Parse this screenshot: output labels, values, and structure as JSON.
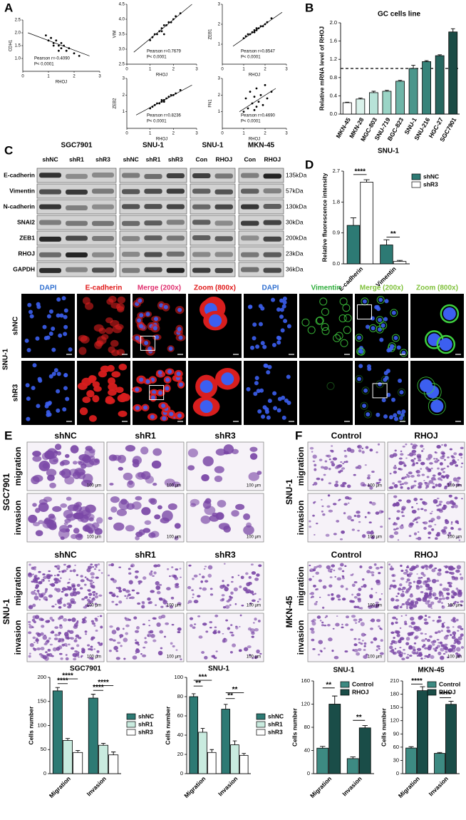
{
  "panel_labels": [
    "A",
    "B",
    "C",
    "D",
    "E",
    "F"
  ],
  "chart_data": [
    {
      "type": "scatter",
      "x_label": "RHOJ",
      "y_label": "CDH1",
      "x": [
        0.9,
        1.0,
        1.1,
        1.2,
        1.2,
        1.3,
        1.4,
        1.5,
        1.5,
        1.6,
        1.7,
        1.8,
        2.0,
        2.2,
        1.4
      ],
      "y": [
        1.9,
        1.7,
        1.8,
        1.6,
        1.5,
        1.7,
        1.5,
        1.6,
        1.4,
        1.5,
        1.3,
        1.4,
        1.2,
        1.1,
        1.3
      ],
      "fit_line": {
        "x": [
          0.2,
          2.6
        ],
        "y": [
          2.0,
          1.1
        ]
      },
      "xlim": [
        0,
        3
      ],
      "xticks": [
        0,
        1,
        2,
        3
      ],
      "ylim": [
        0.5,
        2.5
      ],
      "yticks": [
        {
          "value": 1,
          "label": "1.0"
        },
        1.5,
        {
          "value": 2,
          "label": "2.0"
        },
        2.5
      ],
      "annotations": [
        "Pearson r=-0.4090",
        "P< 0.0001"
      ],
      "color": "#000000"
    },
    {
      "type": "scatter",
      "x_label": "RHOJ",
      "y_label": "VIM",
      "x": [
        1.0,
        1.1,
        1.2,
        1.3,
        1.4,
        1.5,
        1.5,
        1.6,
        1.7,
        1.8,
        1.9,
        2.0,
        2.1,
        2.3,
        1.6
      ],
      "y": [
        3.3,
        3.4,
        3.5,
        3.5,
        3.6,
        3.7,
        3.6,
        3.8,
        3.8,
        3.9,
        3.9,
        4.0,
        4.1,
        4.2,
        3.5
      ],
      "fit_line": {
        "x": [
          0.3,
          2.8
        ],
        "y": [
          2.9,
          4.5
        ]
      },
      "xlim": [
        0,
        3
      ],
      "xticks": [
        0,
        1,
        2,
        3
      ],
      "ylim": [
        2.5,
        4.5
      ],
      "yticks": [
        2.5,
        {
          "value": 3,
          "label": "3.0"
        },
        3.5,
        {
          "value": 4,
          "label": "4.0"
        },
        4.5
      ],
      "annotations": [
        "Pearson r=0.7679",
        "P< 0.0001"
      ],
      "color": "#000000"
    },
    {
      "type": "scatter",
      "x_label": "RHOJ",
      "y_label": "ZEB1",
      "x": [
        1.0,
        1.1,
        1.2,
        1.3,
        1.4,
        1.5,
        1.5,
        1.6,
        1.7,
        1.8,
        1.9,
        2.0,
        2.1,
        2.3,
        1.6
      ],
      "y": [
        1.3,
        1.4,
        1.5,
        1.5,
        1.6,
        1.7,
        1.6,
        1.8,
        1.8,
        1.9,
        1.9,
        2.0,
        2.1,
        2.3,
        1.7
      ],
      "fit_line": {
        "x": [
          0.5,
          2.8
        ],
        "y": [
          0.9,
          2.6
        ]
      },
      "xlim": [
        0,
        3
      ],
      "xticks": [
        0,
        1,
        2,
        3
      ],
      "ylim": [
        0,
        3
      ],
      "yticks": [
        1,
        2,
        3
      ],
      "annotations": [
        "Pearson r=0.8547",
        "P< 0.0001"
      ],
      "color": "#000000"
    },
    {
      "type": "scatter",
      "x_label": "RHOJ",
      "y_label": "ZEB2",
      "x": [
        1.0,
        1.1,
        1.2,
        1.3,
        1.4,
        1.5,
        1.5,
        1.6,
        1.7,
        1.8,
        1.9,
        2.0,
        2.1,
        2.3,
        1.6
      ],
      "y": [
        1.2,
        1.3,
        1.4,
        1.5,
        1.5,
        1.6,
        1.7,
        1.7,
        1.8,
        1.9,
        2.0,
        2.0,
        2.1,
        2.3,
        1.6
      ],
      "fit_line": {
        "x": [
          0.4,
          2.8
        ],
        "y": [
          0.8,
          2.6
        ]
      },
      "xlim": [
        0,
        3
      ],
      "xticks": [
        0,
        1,
        2,
        3
      ],
      "ylim": [
        0,
        3
      ],
      "yticks": [
        1,
        2,
        3
      ],
      "annotations": [
        "Pearson r=0.8236",
        "P< 0.0001"
      ],
      "color": "#000000"
    },
    {
      "type": "scatter",
      "x_label": "RHOJ",
      "y_label": "FN1",
      "x": [
        1.0,
        1.1,
        1.2,
        1.3,
        1.4,
        1.5,
        1.5,
        1.6,
        1.7,
        1.8,
        1.9,
        2.0,
        2.1,
        2.3,
        1.6
      ],
      "y": [
        1.0,
        1.8,
        1.2,
        2.2,
        1.5,
        1.9,
        1.1,
        2.4,
        1.6,
        2.0,
        1.4,
        2.6,
        1.8,
        2.2,
        1.3
      ],
      "fit_line": {
        "x": [
          0.8,
          2.5
        ],
        "y": [
          1.0,
          2.4
        ]
      },
      "xlim": [
        0,
        3
      ],
      "xticks": [
        0,
        1,
        2,
        3
      ],
      "ylim": [
        0,
        3
      ],
      "yticks": [
        1,
        2,
        3
      ],
      "annotations": [
        "Pearson r=0.4690",
        "P< 0.0001"
      ],
      "color": "#000000"
    },
    {
      "type": "bar",
      "title": "GC cells line",
      "y_label": "Relative mRNA level of RHOJ",
      "categories": [
        "MKN-45",
        "MKN-28",
        "MGC-803",
        "SNU-719",
        "BGC-823",
        "SNU-1",
        "SNU-216",
        "HGC-27",
        "SGC7901"
      ],
      "values": [
        0.25,
        0.33,
        0.47,
        0.5,
        0.72,
        1.0,
        1.15,
        1.28,
        1.8
      ],
      "errors": [
        0.01,
        0.02,
        0.03,
        0.02,
        0.02,
        0.07,
        0.02,
        0.02,
        0.07
      ],
      "colors": [
        "#ffffff",
        "#d9f1ea",
        "#b8e3d8",
        "#9ad4c6",
        "#6fb5a8",
        "#4a968b",
        "#37837a",
        "#27665f",
        "#1b4b45"
      ],
      "ref_line": 1,
      "ylim": [
        0,
        2
      ],
      "yticks": [
        {
          "value": 0,
          "label": "0.0"
        },
        0.4,
        0.8,
        1.2,
        1.6,
        {
          "value": 2,
          "label": "2.0"
        }
      ]
    },
    {
      "type": "bar",
      "title": "SNU-1",
      "y_label": "Relative fluorescence intensity",
      "categories": [
        "E-cadherin",
        "Vimentin"
      ],
      "series": [
        {
          "name": "shNC",
          "color": "#2d7a74",
          "values": [
            1.12,
            0.55
          ],
          "errors": [
            0.22,
            0.15
          ]
        },
        {
          "name": "shR3",
          "color": "#ffffff",
          "values": [
            2.38,
            0.07
          ],
          "errors": [
            0.07,
            0.03
          ]
        }
      ],
      "ylim": [
        0,
        2.7
      ],
      "yticks": [
        {
          "value": 0,
          "label": "0.0"
        },
        0.9,
        1.8,
        2.7
      ],
      "annotations": [
        "****",
        "**"
      ]
    },
    {
      "type": "bar",
      "title": "SGC7901",
      "y_label": "Cells number",
      "categories": [
        "Migration",
        "Invasion"
      ],
      "series": [
        {
          "name": "shNC",
          "color": "#2d7a74",
          "values": [
            172,
            157
          ],
          "errors": [
            7,
            8
          ]
        },
        {
          "name": "shR1",
          "color": "#c9ebdf",
          "values": [
            69,
            59
          ],
          "errors": [
            4,
            4
          ]
        },
        {
          "name": "shR3",
          "color": "#ffffff",
          "values": [
            44,
            39
          ],
          "errors": [
            4,
            6
          ]
        }
      ],
      "ylim": [
        0,
        200
      ],
      "yticks": [
        0,
        50,
        100,
        150,
        200
      ],
      "annotations": [
        "****",
        "****",
        "****",
        "****"
      ]
    },
    {
      "type": "bar",
      "title": "SNU-1",
      "y_label": "Cells number",
      "categories": [
        "Migration",
        "Invasion"
      ],
      "series": [
        {
          "name": "shNC",
          "color": "#2d7a74",
          "values": [
            80,
            67
          ],
          "errors": [
            3,
            5
          ]
        },
        {
          "name": "shR1",
          "color": "#c9ebdf",
          "values": [
            43,
            30
          ],
          "errors": [
            4,
            4
          ]
        },
        {
          "name": "shR3",
          "color": "#ffffff",
          "values": [
            22,
            19
          ],
          "errors": [
            3,
            2
          ]
        }
      ],
      "ylim": [
        0,
        100
      ],
      "yticks": [
        0,
        20,
        40,
        60,
        80,
        100
      ],
      "annotations": [
        "***",
        "**",
        "**",
        "**"
      ]
    },
    {
      "type": "bar",
      "title": "SNU-1",
      "y_label": "Cells number",
      "categories": [
        "Migration",
        "Invasion"
      ],
      "series": [
        {
          "name": "Control",
          "color": "#3d8a82",
          "values": [
            44,
            26
          ],
          "errors": [
            3,
            3
          ]
        },
        {
          "name": "RHOJ",
          "color": "#1a4d48",
          "values": [
            120,
            79
          ],
          "errors": [
            14,
            4
          ]
        }
      ],
      "ylim": [
        0,
        160
      ],
      "yticks": [
        0,
        40,
        80,
        120,
        160
      ],
      "annotations": [
        "**",
        "**"
      ]
    },
    {
      "type": "bar",
      "title": "MKN-45",
      "y_label": "Cells number",
      "categories": [
        "Migration",
        "Invasion"
      ],
      "series": [
        {
          "name": "Control",
          "color": "#3d8a82",
          "values": [
            58,
            46
          ],
          "errors": [
            3,
            2
          ]
        },
        {
          "name": "RHOJ",
          "color": "#1a4d48",
          "values": [
            188,
            157
          ],
          "errors": [
            9,
            7
          ]
        }
      ],
      "ylim": [
        0,
        210
      ],
      "yticks": [
        0,
        30,
        60,
        90,
        120,
        150,
        180,
        210
      ],
      "annotations": [
        "****",
        "****"
      ]
    }
  ],
  "blots": {
    "groups": [
      {
        "cell": "SGC7901",
        "lanes": [
          "shNC",
          "shR1",
          "shR3"
        ]
      },
      {
        "cell": "SNU-1",
        "lanes": [
          "shNC",
          "shR1",
          "shR3"
        ]
      },
      {
        "cell": "SNU-1",
        "lanes": [
          "Con",
          "RHOJ"
        ]
      },
      {
        "cell": "MKN-45",
        "lanes": [
          "Con",
          "RHOJ"
        ]
      }
    ],
    "proteins": [
      "E-cadherin",
      "Vimentin",
      "N-cadherin",
      "SNAI2",
      "ZEB1",
      "RHOJ",
      "GAPDH"
    ],
    "sizes": [
      "135kDa",
      "57kDa",
      "130kDa",
      "30kDa",
      "200kDa",
      "23kDa",
      "36kDa"
    ]
  },
  "if_staining": {
    "cell": "SNU-1",
    "rows": [
      "shNC",
      "shR3"
    ],
    "columns": [
      "DAPI",
      "E-cadherin",
      "Merge (200x)",
      "Zoom (800x)",
      "DAPI",
      "Vimentin",
      "Merge (200x)",
      "Zoom (800x)"
    ]
  },
  "transwell_E": {
    "columns": [
      "shNC",
      "shR1",
      "shR3"
    ],
    "blocks": [
      {
        "cell": "SGC7901",
        "rows": [
          "migration",
          "invasion"
        ]
      },
      {
        "cell": "SNU-1",
        "rows": [
          "migration",
          "invasion"
        ]
      }
    ],
    "scale_bar": "100 μm"
  },
  "transwell_F": {
    "columns": [
      "Control",
      "RHOJ"
    ],
    "blocks": [
      {
        "cell": "SNU-1",
        "rows": [
          "migration",
          "invasion"
        ]
      },
      {
        "cell": "MKN-45",
        "rows": [
          "migration",
          "invasion"
        ]
      }
    ],
    "scale_bar": "100 μm"
  }
}
